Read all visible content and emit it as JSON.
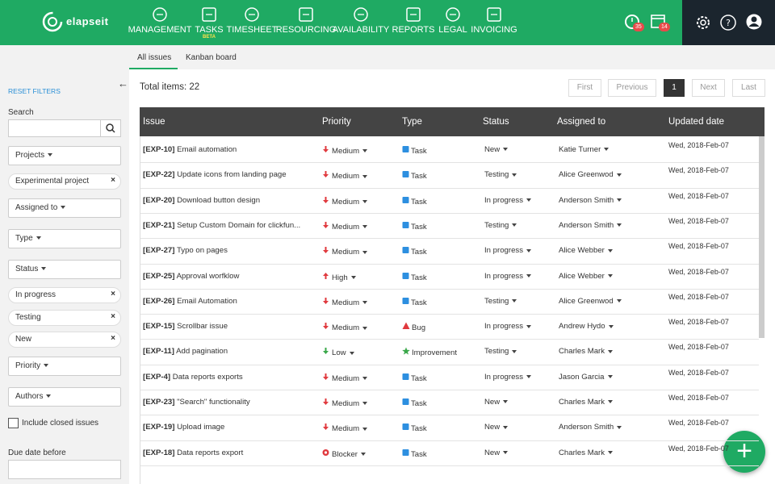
{
  "nav": {
    "logo": "elapseit",
    "items": [
      {
        "label": "MANAGEMENT"
      },
      {
        "label": "TASKS",
        "badge": "BETA"
      },
      {
        "label": "TIMESHEET"
      },
      {
        "label": "RESOURCING"
      },
      {
        "label": "AVAILABILITY"
      },
      {
        "label": "REPORTS"
      },
      {
        "label": "LEGAL"
      },
      {
        "label": "INVOICING"
      }
    ],
    "timer_count": 35,
    "calendar_count": 14
  },
  "tabs": [
    "All issues",
    "Kanban board"
  ],
  "sidebar": {
    "reset": "RESET FILTERS",
    "search_label": "Search",
    "filters": [
      {
        "label": "Projects"
      },
      {
        "chip": "Experimental project"
      },
      {
        "label": "Assigned to"
      },
      {
        "label": "Type"
      },
      {
        "label": "Status"
      },
      {
        "chip": "In progress"
      },
      {
        "chip": "Testing"
      },
      {
        "chip": "New"
      },
      {
        "label": "Priority"
      },
      {
        "label": "Authors"
      }
    ],
    "checkbox": "Include closed issues",
    "due_label": "Due date before"
  },
  "table": {
    "total_label": "Total items:",
    "total": 22,
    "pager": {
      "first": "First",
      "previous": "Previous",
      "current": 1,
      "next": "Next",
      "last": "Last"
    },
    "columns": [
      "Issue",
      "Priority",
      "Type",
      "Status",
      "Assigned to",
      "Updated date"
    ],
    "rows": [
      {
        "key": "[EXP-10]",
        "title": "Email automation",
        "priority": "Medium",
        "type": "Task",
        "status": "New",
        "assignee": "Katie Turner",
        "updated": "Wed, 2018-Feb-07"
      },
      {
        "key": "[EXP-22]",
        "title": "Update icons from landing page",
        "priority": "Medium",
        "type": "Task",
        "status": "Testing",
        "assignee": "Alice Greenwod",
        "updated": "Wed, 2018-Feb-07"
      },
      {
        "key": "[EXP-20]",
        "title": "Download button design",
        "priority": "Medium",
        "type": "Task",
        "status": "In progress",
        "assignee": "Anderson Smith",
        "updated": "Wed, 2018-Feb-07"
      },
      {
        "key": "[EXP-21]",
        "title": "Setup Custom Domain for clickfun...",
        "priority": "Medium",
        "type": "Task",
        "status": "Testing",
        "assignee": "Anderson Smith",
        "updated": "Wed, 2018-Feb-07"
      },
      {
        "key": "[EXP-27]",
        "title": "Typo on pages",
        "priority": "Medium",
        "type": "Task",
        "status": "In progress",
        "assignee": "Alice Webber",
        "updated": "Wed, 2018-Feb-07"
      },
      {
        "key": "[EXP-25]",
        "title": "Approval worfklow",
        "priority": "High",
        "type": "Task",
        "status": "In progress",
        "assignee": "Alice Webber",
        "updated": "Wed, 2018-Feb-07"
      },
      {
        "key": "[EXP-26]",
        "title": "Email Automation",
        "priority": "Medium",
        "type": "Task",
        "status": "Testing",
        "assignee": "Alice Greenwod",
        "updated": "Wed, 2018-Feb-07"
      },
      {
        "key": "[EXP-15]",
        "title": "Scrollbar issue",
        "priority": "Medium",
        "type": "Bug",
        "status": "In progress",
        "assignee": "Andrew Hydo",
        "updated": "Wed, 2018-Feb-07"
      },
      {
        "key": "[EXP-11]",
        "title": "Add pagination",
        "priority": "Low",
        "type": "Improvement",
        "status": "Testing",
        "assignee": "Charles Mark",
        "updated": "Wed, 2018-Feb-07"
      },
      {
        "key": "[EXP-4]",
        "title": "Data reports exports",
        "priority": "Medium",
        "type": "Task",
        "status": "In progress",
        "assignee": "Jason Garcia",
        "updated": "Wed, 2018-Feb-07"
      },
      {
        "key": "[EXP-23]",
        "title": "\"Search\" functionality",
        "priority": "Medium",
        "type": "Task",
        "status": "New",
        "assignee": "Charles Mark",
        "updated": "Wed, 2018-Feb-07"
      },
      {
        "key": "[EXP-19]",
        "title": "Upload image",
        "priority": "Medium",
        "type": "Task",
        "status": "New",
        "assignee": "Anderson Smith",
        "updated": "Wed, 2018-Feb-07"
      },
      {
        "key": "[EXP-18]",
        "title": "Data reports export",
        "priority": "Blocker",
        "type": "Task",
        "status": "New",
        "assignee": "Charles Mark",
        "updated": "Wed, 2018-Feb-07"
      }
    ]
  }
}
